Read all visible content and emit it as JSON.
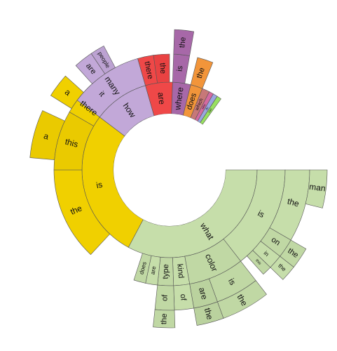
{
  "chart_data": {
    "type": "sunburst",
    "title": "",
    "center": "",
    "tree": [
      {
        "label": "is",
        "color": "#f0d000",
        "a0": 118,
        "a1": 217,
        "depth": 1,
        "children": [
          {
            "label": "the",
            "a0": 133,
            "a1": 180,
            "ext": 1
          },
          {
            "label": "this",
            "a0": 180,
            "a1": 210,
            "ext": 1,
            "children": [
              {
                "label": "a",
                "a0": 185,
                "a1": 205,
                "ext": 1
              }
            ]
          },
          {
            "label": "there",
            "a0": 210,
            "a1": 224,
            "ext": 1,
            "children": [
              {
                "label": "a",
                "a0": 212,
                "a1": 222,
                "ext": 1
              }
            ]
          },
          {
            "label": "it",
            "a0": 224,
            "a1": 232,
            "ext": 1
          }
        ]
      },
      {
        "label": "how",
        "color": "#c2a8d8",
        "a0": 217,
        "a1": 254,
        "depth": 1,
        "children": [
          {
            "label": "many",
            "a0": 217,
            "a1": 254,
            "ext": 1,
            "children": [
              {
                "label": "are",
                "a0": 228,
                "a1": 236,
                "ext": 2
              },
              {
                "label": "people",
                "a0": 236,
                "a1": 242,
                "ext": 1
              }
            ]
          }
        ]
      },
      {
        "label": "are",
        "color": "#ef4848",
        "a0": 254,
        "a1": 272,
        "depth": 1,
        "children": [
          {
            "label": "there",
            "a0": 254,
            "a1": 262,
            "ext": 1
          },
          {
            "label": "the",
            "a0": 262,
            "a1": 270,
            "ext": 1
          }
        ]
      },
      {
        "label": "where",
        "color": "#a768a8",
        "a0": 272,
        "a1": 284,
        "depth": 1,
        "children": [
          {
            "label": "is",
            "a0": 272,
            "a1": 280,
            "ext": 1,
            "children": [
              {
                "label": "the",
                "a0": 272,
                "a1": 280,
                "ext": 1
              }
            ]
          }
        ]
      },
      {
        "label": "does",
        "color": "#f2953a",
        "a0": 284,
        "a1": 292,
        "depth": 1,
        "children": [
          {
            "label": "the",
            "a0": 284,
            "a1": 292,
            "ext": 1
          }
        ]
      },
      {
        "label": "which",
        "color": "#c77878",
        "a0": 292,
        "a1": 297,
        "depth": 1,
        "children": []
      },
      {
        "label": "who",
        "color": "#d46aa0",
        "a0": 297,
        "a1": 300,
        "depth": 1,
        "children": []
      },
      {
        "label": "do",
        "color": "#9aa6e0",
        "a0": 300,
        "a1": 303,
        "depth": 1,
        "children": []
      },
      {
        "label": "can",
        "color": "#98e060",
        "a0": 303,
        "a1": 306,
        "depth": 1,
        "children": []
      },
      {
        "label": "what",
        "color": "#c6deaa",
        "a0": 0,
        "a1": 118,
        "depth": 1,
        "children": [
          {
            "label": "is",
            "a0": 0,
            "a1": 52,
            "ext": 1,
            "children": [
              {
                "label": "the",
                "a0": 0,
                "a1": 30,
                "ext": 1,
                "children": [
                  {
                    "label": "man",
                    "a0": 0,
                    "a1": 14,
                    "ext": 1
                  }
                ]
              },
              {
                "label": "on",
                "a0": 30,
                "a1": 38,
                "ext": 1,
                "children": [
                  {
                    "label": "the",
                    "a0": 30,
                    "a1": 38,
                    "ext": 1
                  }
                ]
              },
              {
                "label": "in",
                "a0": 38,
                "a1": 44,
                "ext": 1,
                "children": [
                  {
                    "label": "the",
                    "a0": 38,
                    "a1": 44,
                    "ext": 1
                  }
                ]
              },
              {
                "label": "this",
                "a0": 44,
                "a1": 48,
                "ext": 1
              }
            ]
          },
          {
            "label": "color",
            "a0": 52,
            "a1": 80,
            "ext": 1,
            "children": [
              {
                "label": "is",
                "a0": 52,
                "a1": 70,
                "ext": 1,
                "children": [
                  {
                    "label": "the",
                    "a0": 52,
                    "a1": 70,
                    "ext": 1
                  }
                ]
              },
              {
                "label": "are",
                "a0": 70,
                "a1": 80,
                "ext": 1,
                "children": [
                  {
                    "label": "the",
                    "a0": 70,
                    "a1": 80,
                    "ext": 1
                  }
                ]
              }
            ]
          },
          {
            "label": "kind",
            "a0": 80,
            "a1": 88,
            "ext": 1,
            "children": [
              {
                "label": "of",
                "a0": 80,
                "a1": 88,
                "ext": 1
              }
            ]
          },
          {
            "label": "type",
            "a0": 88,
            "a1": 96,
            "ext": 1,
            "children": [
              {
                "label": "of",
                "a0": 88,
                "a1": 96,
                "ext": 1,
                "children": [
                  {
                    "label": "the",
                    "a0": 88,
                    "a1": 96,
                    "ext": 1
                  }
                ]
              }
            ]
          },
          {
            "label": "are",
            "a0": 96,
            "a1": 102,
            "ext": 1
          },
          {
            "label": "does",
            "a0": 102,
            "a1": 108,
            "ext": 1
          }
        ]
      }
    ]
  }
}
